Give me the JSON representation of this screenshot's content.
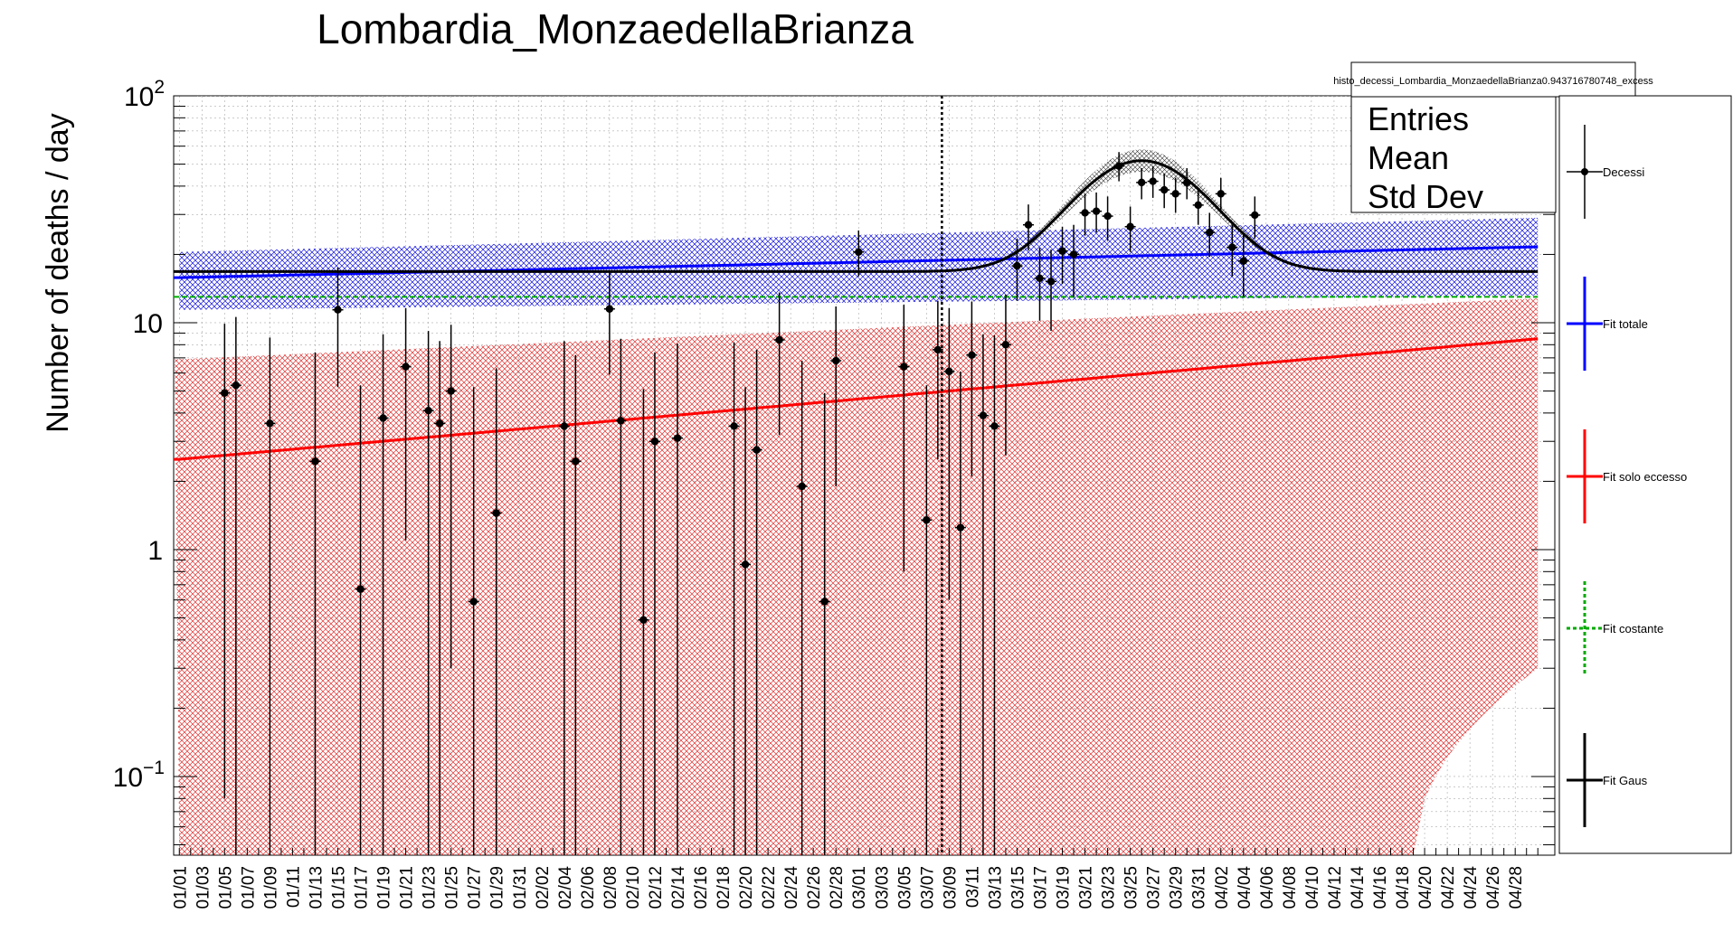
{
  "chart_data": {
    "type": "scatter",
    "title": "Lombardia_MonzaedellaBrianza",
    "ylabel": "Number of deaths / day",
    "xlabel": "",
    "yscale": "log",
    "ylim": [
      0.045,
      100
    ],
    "y_ticks": [
      {
        "value": 0.1,
        "base": "10",
        "exp": "−1"
      },
      {
        "value": 1,
        "label": "1"
      },
      {
        "value": 10,
        "label": "10"
      },
      {
        "value": 100,
        "base": "10",
        "exp": "2"
      }
    ],
    "x_start_index": 0,
    "x_end_index": 122,
    "x_tick_labels": [
      "01/01",
      "01/03",
      "01/05",
      "01/07",
      "01/09",
      "01/11",
      "01/13",
      "01/15",
      "01/17",
      "01/19",
      "01/21",
      "01/23",
      "01/25",
      "01/27",
      "01/29",
      "01/31",
      "02/02",
      "02/04",
      "02/06",
      "02/08",
      "02/10",
      "02/12",
      "02/14",
      "02/16",
      "02/18",
      "02/20",
      "02/22",
      "02/24",
      "02/26",
      "02/28",
      "03/01",
      "03/03",
      "03/05",
      "03/07",
      "03/09",
      "03/11",
      "03/13",
      "03/15",
      "03/17",
      "03/19",
      "03/21",
      "03/23",
      "03/25",
      "03/27",
      "03/29",
      "03/31",
      "04/02",
      "04/04",
      "04/06",
      "04/08",
      "04/10",
      "04/12",
      "04/14",
      "04/16",
      "04/18",
      "04/20",
      "04/22",
      "04/24",
      "04/26",
      "04/28"
    ],
    "vline_date": "03/09",
    "grid": true,
    "series": [
      {
        "name": "Decessi",
        "kind": "points",
        "color": "#000000",
        "points": [
          {
            "x": "01/05",
            "y": 4.9,
            "lo": 0.08,
            "hi": 9.9
          },
          {
            "x": "01/06",
            "y": 5.3,
            "lo": 0.04,
            "hi": 10.6
          },
          {
            "x": "01/09",
            "y": 3.6,
            "lo": 0.04,
            "hi": 8.6
          },
          {
            "x": "01/13",
            "y": 2.45,
            "lo": 0.04,
            "hi": 7.4
          },
          {
            "x": "01/15",
            "y": 11.4,
            "lo": 5.2,
            "hi": 17.5
          },
          {
            "x": "01/17",
            "y": 0.67,
            "lo": 0.04,
            "hi": 5.3
          },
          {
            "x": "01/19",
            "y": 3.8,
            "lo": 0.04,
            "hi": 8.9
          },
          {
            "x": "01/21",
            "y": 6.4,
            "lo": 1.1,
            "hi": 11.6
          },
          {
            "x": "01/23",
            "y": 4.1,
            "lo": 0.04,
            "hi": 9.2
          },
          {
            "x": "01/24",
            "y": 3.6,
            "lo": 0.04,
            "hi": 8.3
          },
          {
            "x": "01/25",
            "y": 5.0,
            "lo": 0.3,
            "hi": 9.8
          },
          {
            "x": "01/27",
            "y": 0.59,
            "lo": 0.04,
            "hi": 5.2
          },
          {
            "x": "01/29",
            "y": 1.45,
            "lo": 0.04,
            "hi": 6.3
          },
          {
            "x": "02/04",
            "y": 3.5,
            "lo": 0.04,
            "hi": 8.3
          },
          {
            "x": "02/05",
            "y": 2.45,
            "lo": 0.04,
            "hi": 7.2
          },
          {
            "x": "02/08",
            "y": 11.5,
            "lo": 5.9,
            "hi": 16.9
          },
          {
            "x": "02/09",
            "y": 3.7,
            "lo": 0.04,
            "hi": 8.5
          },
          {
            "x": "02/11",
            "y": 0.49,
            "lo": 0.04,
            "hi": 5.1
          },
          {
            "x": "02/12",
            "y": 3.0,
            "lo": 0.04,
            "hi": 7.4
          },
          {
            "x": "02/14",
            "y": 3.1,
            "lo": 0.04,
            "hi": 8.1
          },
          {
            "x": "02/19",
            "y": 3.5,
            "lo": 0.04,
            "hi": 8.2
          },
          {
            "x": "02/20",
            "y": 0.86,
            "lo": 0.04,
            "hi": 5.2
          },
          {
            "x": "02/21",
            "y": 2.75,
            "lo": 0.04,
            "hi": 7.6
          },
          {
            "x": "02/23",
            "y": 8.4,
            "lo": 3.2,
            "hi": 13.6
          },
          {
            "x": "02/25",
            "y": 1.9,
            "lo": 0.04,
            "hi": 6.8
          },
          {
            "x": "02/27",
            "y": 0.59,
            "lo": 0.04,
            "hi": 4.9
          },
          {
            "x": "02/28",
            "y": 6.8,
            "lo": 1.9,
            "hi": 11.8
          },
          {
            "x": "03/01",
            "y": 20.5,
            "lo": 16.0,
            "hi": 25.5
          },
          {
            "x": "03/05",
            "y": 6.4,
            "lo": 0.8,
            "hi": 12.0
          },
          {
            "x": "03/07",
            "y": 1.35,
            "lo": 0.04,
            "hi": 5.3
          },
          {
            "x": "03/08",
            "y": 7.6,
            "lo": 2.5,
            "hi": 12.5
          },
          {
            "x": "03/09",
            "y": 6.1,
            "lo": 0.6,
            "hi": 11.6
          },
          {
            "x": "03/10",
            "y": 1.25,
            "lo": 0.04,
            "hi": 6.1
          },
          {
            "x": "03/11",
            "y": 7.2,
            "lo": 2.1,
            "hi": 12.4
          },
          {
            "x": "03/12",
            "y": 3.9,
            "lo": 0.04,
            "hi": 8.9
          },
          {
            "x": "03/13",
            "y": 3.5,
            "lo": 0.04,
            "hi": 8.8
          },
          {
            "x": "03/14",
            "y": 8.0,
            "lo": 2.6,
            "hi": 13.3
          },
          {
            "x": "03/15",
            "y": 17.8,
            "lo": 12.5,
            "hi": 23.5
          },
          {
            "x": "03/16",
            "y": 27.0,
            "lo": 20.8,
            "hi": 33.2
          },
          {
            "x": "03/17",
            "y": 15.7,
            "lo": 10.2,
            "hi": 21.4
          },
          {
            "x": "03/18",
            "y": 15.2,
            "lo": 9.2,
            "hi": 21.0
          },
          {
            "x": "03/19",
            "y": 20.7,
            "lo": 14.8,
            "hi": 26.5
          },
          {
            "x": "03/20",
            "y": 20.0,
            "lo": 13.0,
            "hi": 27.0
          },
          {
            "x": "03/21",
            "y": 30.5,
            "lo": 24.2,
            "hi": 37.0
          },
          {
            "x": "03/22",
            "y": 31.0,
            "lo": 25.0,
            "hi": 37.5
          },
          {
            "x": "03/23",
            "y": 29.5,
            "lo": 23.0,
            "hi": 36.0
          },
          {
            "x": "03/24",
            "y": 49.0,
            "lo": 42.0,
            "hi": 56.5
          },
          {
            "x": "03/25",
            "y": 26.5,
            "lo": 20.5,
            "hi": 32.5
          },
          {
            "x": "03/26",
            "y": 41.5,
            "lo": 35.0,
            "hi": 48.0
          },
          {
            "x": "03/27",
            "y": 42.0,
            "lo": 35.5,
            "hi": 49.0
          },
          {
            "x": "03/28",
            "y": 38.5,
            "lo": 32.0,
            "hi": 45.5
          },
          {
            "x": "03/29",
            "y": 37.0,
            "lo": 30.5,
            "hi": 43.5
          },
          {
            "x": "03/30",
            "y": 41.5,
            "lo": 35.0,
            "hi": 48.0
          },
          {
            "x": "03/31",
            "y": 33.0,
            "lo": 27.0,
            "hi": 39.5
          },
          {
            "x": "04/01",
            "y": 25.0,
            "lo": 19.5,
            "hi": 30.5
          },
          {
            "x": "04/02",
            "y": 37.0,
            "lo": 30.5,
            "hi": 43.5
          },
          {
            "x": "04/03",
            "y": 21.5,
            "lo": 16.0,
            "hi": 27.0
          },
          {
            "x": "04/04",
            "y": 18.7,
            "lo": 13.0,
            "hi": 24.5
          },
          {
            "x": "04/05",
            "y": 29.8,
            "lo": 23.5,
            "hi": 36.0
          }
        ]
      },
      {
        "name": "Fit totale",
        "kind": "line",
        "color": "#0000ff",
        "band_color": "#0000dd",
        "y_start": 15.8,
        "y_end": 21.6,
        "band_lo_start": 11.4,
        "band_hi_start": 20.5,
        "band_lo_end": 13.2,
        "band_hi_end": 29.0
      },
      {
        "name": "Fit solo eccesso",
        "kind": "line",
        "color": "#ff0000",
        "band_color": "#e03030",
        "y_start": 2.5,
        "y_end": 8.5,
        "band_hi_start": 6.9,
        "band_hi_end": 12.8,
        "band_lo_start": 0.045,
        "band_lo_end": 0.3,
        "band_lo_floor_until": "04/19"
      },
      {
        "name": "Fit costante",
        "kind": "dashed",
        "color": "#00aa00",
        "y_start": 13.0,
        "y_end": 13.0
      },
      {
        "name": "Fit Gaus",
        "kind": "line",
        "color": "#000000",
        "y_start": 16.8,
        "y_end": 16.8,
        "gaus_base_start": 16.8,
        "gaus_base_end": 16.8,
        "gaus_amp": 35.0,
        "gaus_center": "03/26",
        "gaus_sigma_days": 5.2
      }
    ]
  },
  "stats_box": {
    "hist_name": "histo_decessi_Lombardia_MonzaedellaBrianza0.943716780748_excess",
    "rows": [
      "Entries",
      "Mean",
      "Std Dev"
    ]
  },
  "legend": {
    "items": [
      "Decessi",
      "Fit totale",
      "Fit solo eccesso",
      "Fit costante",
      "Fit Gaus"
    ]
  }
}
